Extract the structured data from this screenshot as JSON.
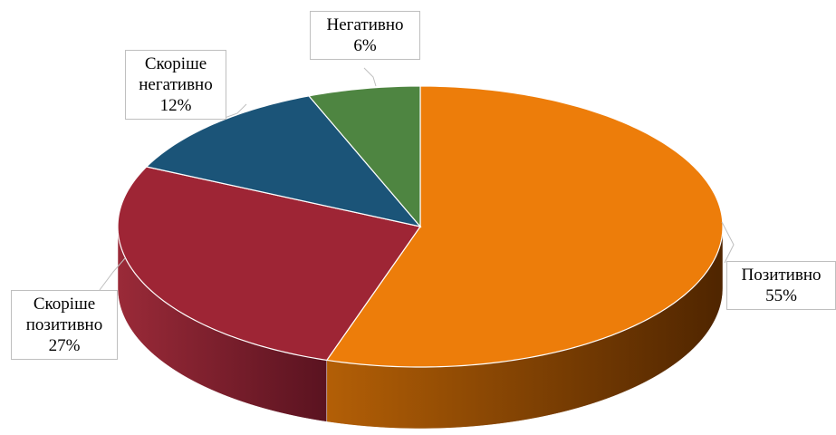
{
  "chart_data": {
    "type": "pie",
    "categories": [
      "Позитивно",
      "Скоріше позитивно",
      "Скоріше негативно",
      "Негативно"
    ],
    "values": [
      55,
      27,
      12,
      6
    ],
    "value_labels": [
      "55%",
      "27%",
      "12%",
      "6%"
    ],
    "colors": [
      "#ED7D0A",
      "#9E2535",
      "#1B5478",
      "#4E8541"
    ]
  }
}
